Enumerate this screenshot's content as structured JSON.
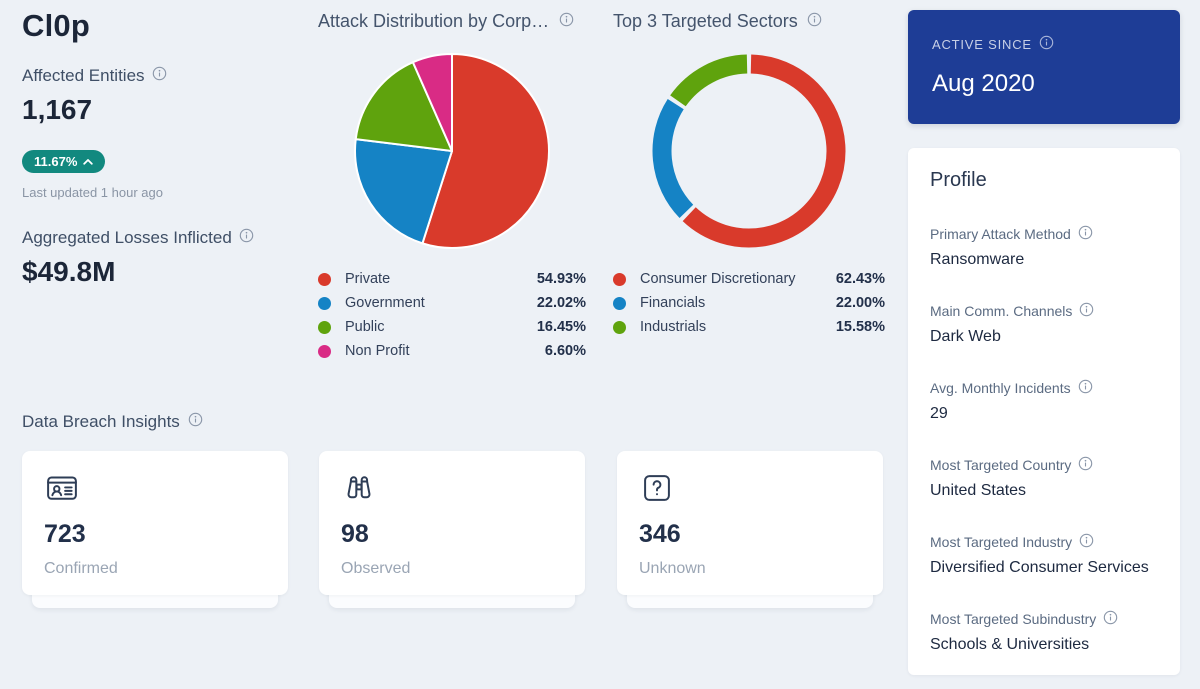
{
  "header": {
    "title": "Cl0p"
  },
  "stats": {
    "affected_entities": {
      "label": "Affected Entities",
      "value": "1,167",
      "change_badge": "11.67%",
      "change_direction": "chevron-up-icon",
      "last_updated": "Last updated 1 hour ago"
    },
    "aggregated_losses": {
      "label": "Aggregated Losses Inflicted",
      "value": "$49.8M"
    }
  },
  "chart_data": [
    {
      "type": "pie",
      "title": "Attack Distribution by Corpor…",
      "categories": [
        "Private",
        "Government",
        "Public",
        "Non Profit"
      ],
      "values": [
        54.93,
        22.02,
        16.45,
        6.6
      ],
      "value_labels": [
        "54.93%",
        "22.02%",
        "16.45%",
        "6.60%"
      ],
      "colors": [
        "#d93a2b",
        "#1583c5",
        "#5fa30d",
        "#d92b85"
      ],
      "start_angle_deg": 0,
      "direction": "clockwise",
      "legend_position": "bottom"
    },
    {
      "type": "donut",
      "title": "Top 3 Targeted Sectors",
      "categories": [
        "Consumer Discretionary",
        "Financials",
        "Industrials"
      ],
      "values": [
        62.43,
        22.0,
        15.58
      ],
      "value_labels": [
        "62.43%",
        "22.00%",
        "15.58%"
      ],
      "colors": [
        "#d93a2b",
        "#1583c5",
        "#5fa30d"
      ],
      "start_angle_deg": 0,
      "direction": "clockwise",
      "legend_position": "bottom"
    }
  ],
  "breach_insights": {
    "title": "Data Breach Insights",
    "cards": [
      {
        "icon": "id-card-icon",
        "value": "723",
        "label": "Confirmed"
      },
      {
        "icon": "binoculars-icon",
        "value": "98",
        "label": "Observed"
      },
      {
        "icon": "question-mark-icon",
        "value": "346",
        "label": "Unknown"
      }
    ]
  },
  "active_since": {
    "label": "ACTIVE SINCE",
    "value": "Aug 2020"
  },
  "profile": {
    "title": "Profile",
    "fields": [
      {
        "label": "Primary Attack Method",
        "value": "Ransomware"
      },
      {
        "label": "Main Comm. Channels",
        "value": "Dark Web"
      },
      {
        "label": "Avg. Monthly Incidents",
        "value": "29"
      },
      {
        "label": "Most Targeted Country",
        "value": "United States"
      },
      {
        "label": "Most Targeted Industry",
        "value": "Diversified Consumer Services"
      },
      {
        "label": "Most Targeted Subindustry",
        "value": "Schools & Universities"
      }
    ]
  },
  "colors": {
    "page_background": "#edf1f6",
    "badge_positive": "#12897f",
    "active_card": "#1e3d96",
    "text_dark": "#1c2638",
    "text_muted": "#9aa5b4"
  }
}
